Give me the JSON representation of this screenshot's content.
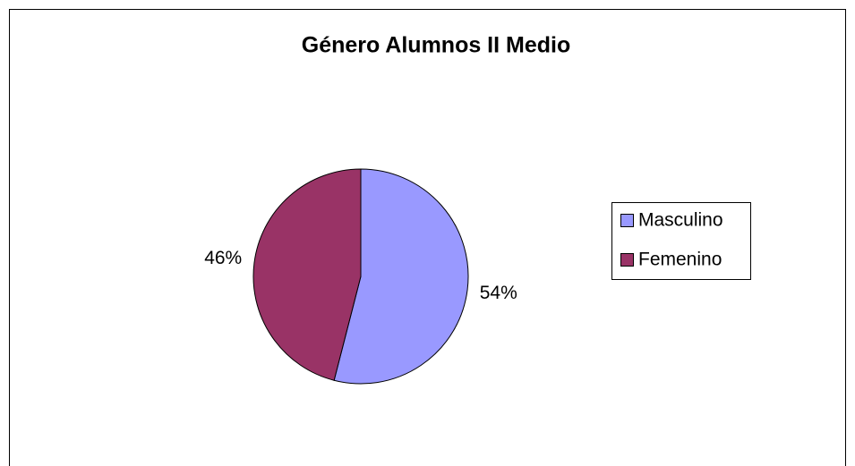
{
  "chart_data": {
    "type": "pie",
    "title": "Género Alumnos II Medio",
    "categories": [
      "Masculino",
      "Femenino"
    ],
    "values": [
      54,
      46
    ],
    "value_labels": [
      "54%",
      "46%"
    ],
    "colors": [
      "#9999ff",
      "#993366"
    ],
    "legend": "right"
  }
}
